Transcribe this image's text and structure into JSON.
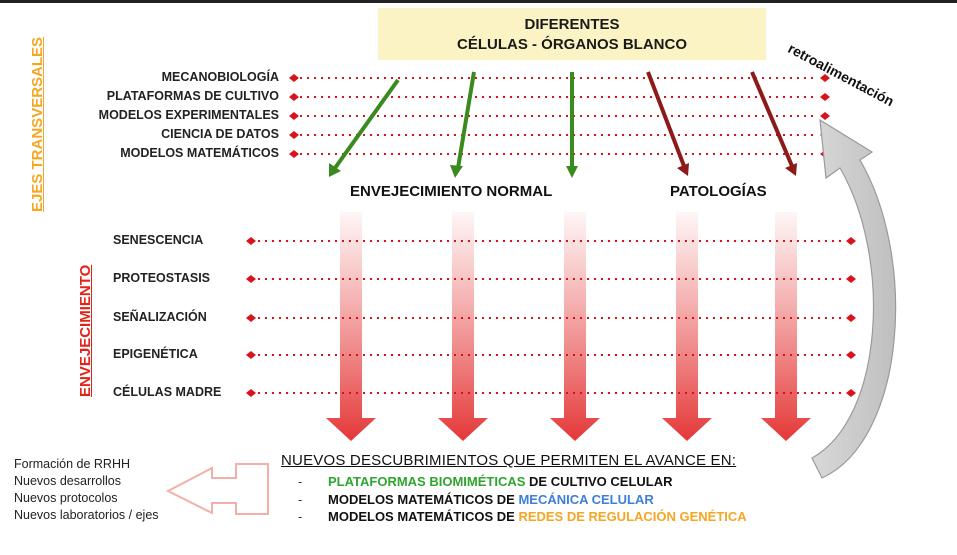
{
  "title": {
    "line1": "DIFERENTES",
    "line2": "CÉLULAS - ÓRGANOS BLANCO"
  },
  "sidebars": {
    "transversal": "EJES TRANSVERSALES",
    "aging": "ENVEJECIMIENTO"
  },
  "transversal_axes": [
    "MECANOBIOLOGÍA",
    "PLATAFORMAS DE CULTIVO",
    "MODELOS EXPERIMENTALES",
    "CIENCIA DE DATOS",
    "MODELOS MATEMÁTICOS"
  ],
  "aging_hallmarks": [
    "SENESCENCIA",
    "PROTEOSTASIS",
    "SEÑALIZACIÓN",
    "EPIGENÉTICA",
    "CÉLULAS MADRE"
  ],
  "stages": {
    "normal": "ENVEJECIMIENTO NORMAL",
    "pathology": "PATOLOGÍAS"
  },
  "feedback_label": "retroalimentación",
  "outputs": [
    "Formación de RRHH",
    "Nuevos desarrollos",
    "Nuevos protocolos",
    "Nuevos laboratorios / ejes"
  ],
  "discoveries": {
    "title": "NUEVOS DESCUBRIMIENTOS QUE PERMITEN EL AVANCE EN:",
    "dash": "-",
    "item1_a": "PLATAFORMAS BIOMIMÉTICAS",
    "item1_b": " DE CULTIVO CELULAR",
    "item2_a": "MODELOS MATEMÁTICOS DE ",
    "item2_b": "MECÁNICA CELULAR",
    "item3_a": "MODELOS MATEMÁTICOS DE ",
    "item3_b": "REDES DE REGULACIÓN GENÉTICA"
  },
  "colors": {
    "red_dots": "#d9131c",
    "green_arrow": "#3a8a1f",
    "dark_red_arrow": "#8b1a1a",
    "orange": "#f5a623",
    "red": "#e2231a",
    "blue": "#3d7fd9",
    "green_text": "#2ea52e",
    "title_bg": "#fbf3c4"
  }
}
